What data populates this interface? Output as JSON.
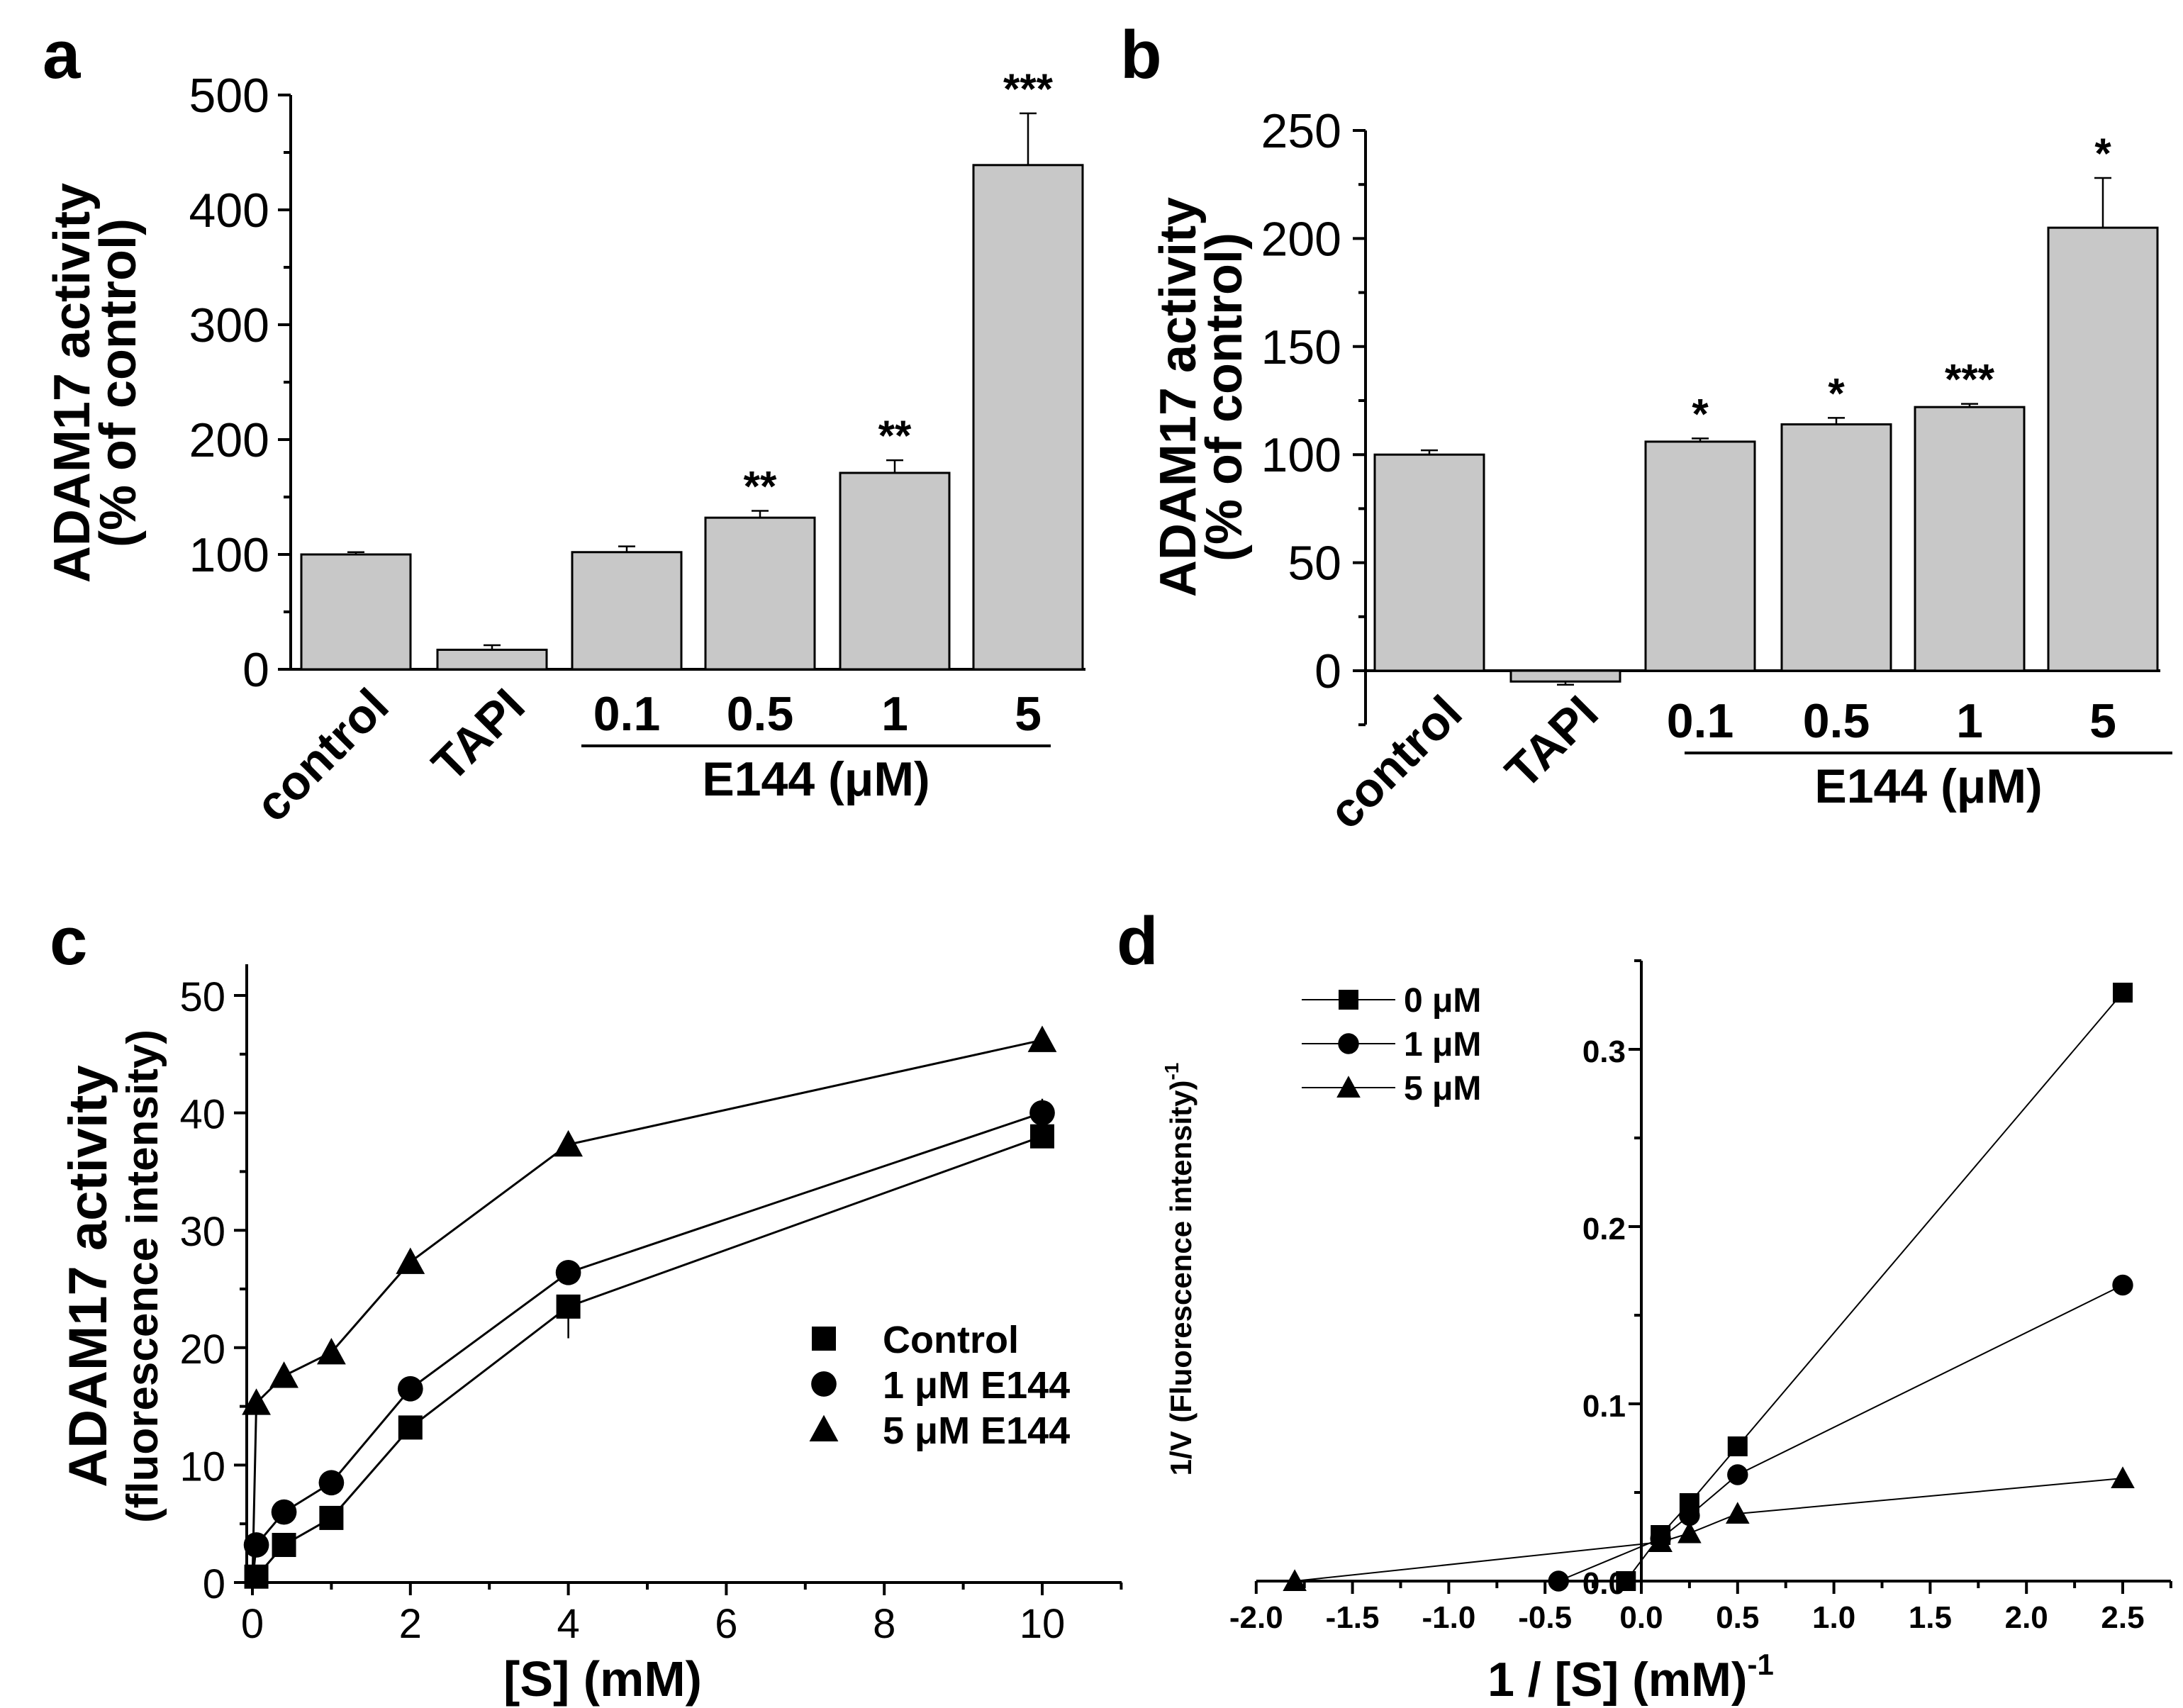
{
  "chart_data": [
    {
      "panel": "a",
      "type": "bar",
      "ylabel": [
        "ADAM17 activity",
        "(% of control)"
      ],
      "ylim": [
        0,
        500
      ],
      "yticks": [
        0,
        100,
        200,
        300,
        400,
        500
      ],
      "categories": [
        "control",
        "TAPI",
        "0.1",
        "0.5",
        "1",
        "5"
      ],
      "values": [
        100,
        17,
        102,
        132,
        171,
        439
      ],
      "errors": [
        2,
        4,
        5,
        6,
        11,
        45
      ],
      "significance": [
        "",
        "",
        "",
        "**",
        "**",
        "***"
      ],
      "group_label": "E144 (μM)",
      "bar_color": "#c8c8c8"
    },
    {
      "panel": "b",
      "type": "bar",
      "ylabel": [
        "ADAM17 activity",
        "(% of control)"
      ],
      "ylim": [
        -25,
        250
      ],
      "yticks": [
        0,
        50,
        100,
        150,
        200,
        250
      ],
      "categories": [
        "control",
        "TAPI",
        "0.1",
        "0.5",
        "1",
        "5"
      ],
      "values": [
        100,
        -5,
        106,
        114,
        122,
        205
      ],
      "errors": [
        2,
        1.5,
        1.5,
        3,
        1.5,
        23
      ],
      "significance": [
        "",
        "",
        "*",
        "*",
        "***",
        "*"
      ],
      "group_label": "E144 (μM)",
      "bar_color": "#c8c8c8"
    },
    {
      "panel": "c",
      "type": "line",
      "xlabel": "[S] (mM)",
      "ylabel": [
        "ADAM17 activity",
        "(fluorescence intensity)"
      ],
      "xlim": [
        0,
        11
      ],
      "ylim": [
        0,
        50
      ],
      "xticks": [
        0,
        2,
        4,
        6,
        8,
        10
      ],
      "yticks": [
        0,
        10,
        20,
        30,
        40,
        50
      ],
      "series": [
        {
          "name": "Control",
          "marker": "square",
          "x": [
            0.05,
            0.4,
            1,
            2,
            4,
            10
          ],
          "y": [
            0.5,
            3.2,
            5.5,
            13.2,
            23.5,
            38
          ],
          "err": [
            0,
            0,
            0,
            0,
            2.7,
            0.5
          ]
        },
        {
          "name": "1 μM E144",
          "marker": "circle",
          "x": [
            0.05,
            0.4,
            1,
            2,
            4,
            10
          ],
          "y": [
            3.2,
            6.0,
            8.5,
            16.5,
            26.4,
            40
          ],
          "err": [
            0,
            0,
            0,
            0,
            0,
            1.2
          ]
        },
        {
          "name": "5 μM E144",
          "marker": "triangle",
          "x": [
            0.05,
            0.4,
            1,
            2,
            4,
            10
          ],
          "y": [
            15.3,
            17.6,
            19.6,
            27.3,
            37.3,
            46.2
          ],
          "err": [
            0.5,
            0.5,
            0,
            1,
            0,
            0
          ]
        }
      ],
      "legend": "center-right"
    },
    {
      "panel": "d",
      "type": "line",
      "xlabel": "1 / [S] (mM)",
      "xlabel_sup": "-1",
      "ylabel": "1/V (Fluorescence intensity)",
      "ylabel_sup": "-1",
      "xlim": [
        -2.0,
        2.75
      ],
      "ylim": [
        0,
        0.35
      ],
      "xticks": [
        "-2.0",
        "-1.5",
        "-1.0",
        "-0.5",
        "0.0",
        "0.5",
        "1.0",
        "1.5",
        "2.0",
        "2.5"
      ],
      "yticks": [
        "0.0",
        "0.1",
        "0.2",
        "0.3"
      ],
      "series": [
        {
          "name": "0 μM",
          "marker": "square",
          "x": [
            -0.08,
            0.1,
            0.25,
            0.5,
            2.5
          ],
          "y": [
            0,
            0.026,
            0.044,
            0.076,
            0.332
          ]
        },
        {
          "name": "1 μM",
          "marker": "circle",
          "x": [
            -0.43,
            0.1,
            0.25,
            0.5,
            2.5
          ],
          "y": [
            0,
            0.024,
            0.037,
            0.06,
            0.167
          ]
        },
        {
          "name": "5 μM",
          "marker": "triangle",
          "x": [
            -1.8,
            0.1,
            0.25,
            0.5,
            2.5
          ],
          "y": [
            0,
            0.022,
            0.027,
            0.038,
            0.058
          ]
        }
      ],
      "legend": "top-left"
    }
  ],
  "panel_labels": [
    "a",
    "b",
    "c",
    "d"
  ]
}
